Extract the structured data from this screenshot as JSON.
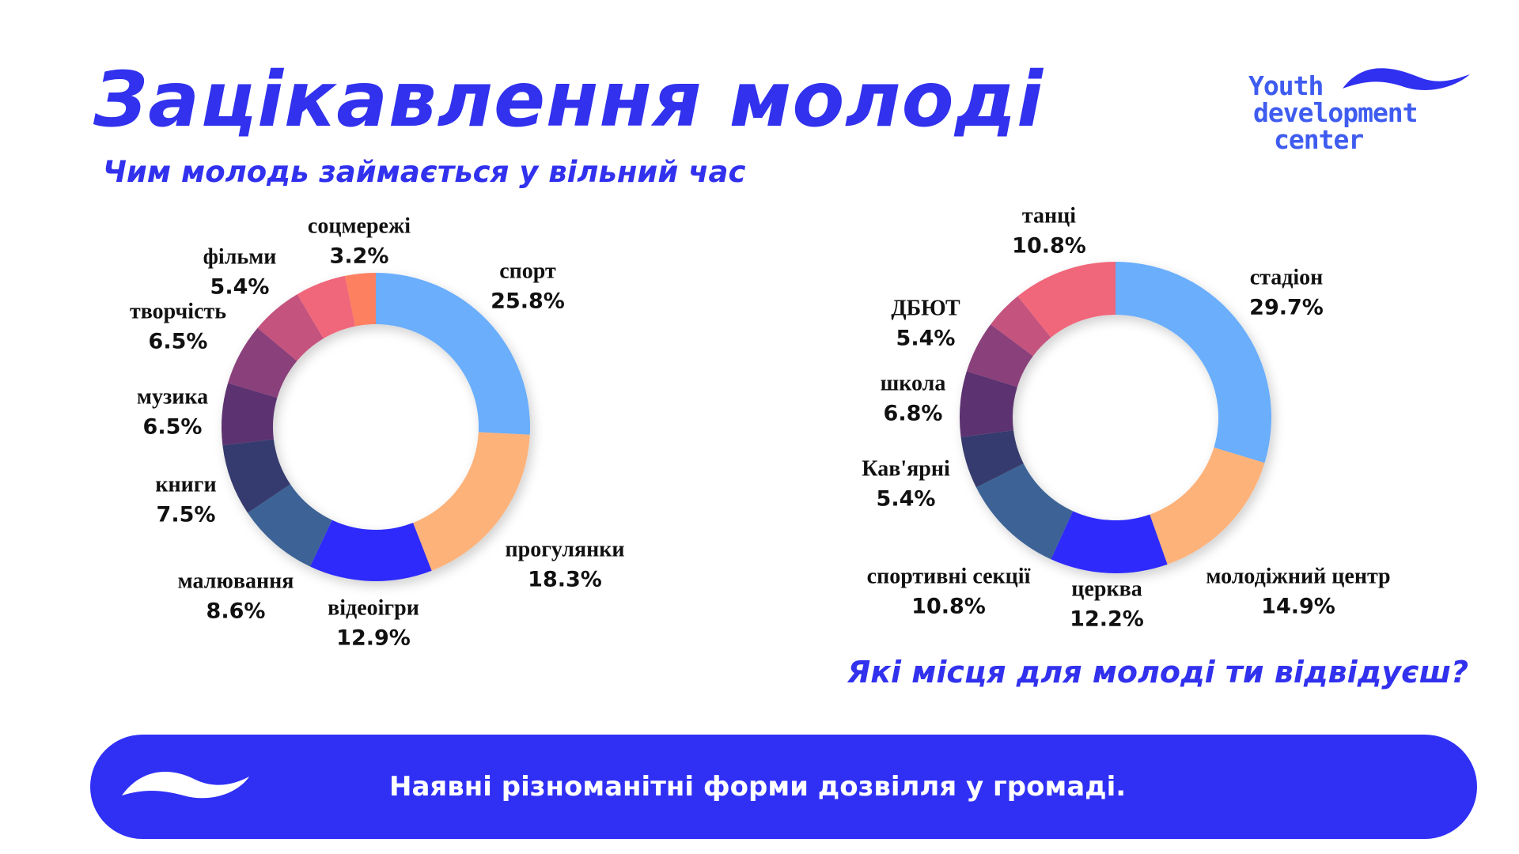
{
  "header": {
    "title": "Зацікавлення молоді",
    "subtitle": "Чим молодь займається у вільний час",
    "question": "Які місця для молоді ти відвідуєш?",
    "logo_text": [
      "Youth",
      "development",
      "center"
    ]
  },
  "banner": {
    "text": "Наявні різноманітні форми дозвілля у громаді."
  },
  "colors": {
    "accent": "#3131ee",
    "banner": "#3030f5"
  },
  "chart_data": [
    {
      "type": "pie",
      "title": "Чим молодь займається у вільний час",
      "slices": [
        {
          "label": "спорт",
          "value": 25.8,
          "display": "25.8%",
          "color": "#6aaefc"
        },
        {
          "label": "прогулянки",
          "value": 18.3,
          "display": "18.3%",
          "color": "#fdb27a"
        },
        {
          "label": "відеоігри",
          "value": 12.9,
          "display": "12.9%",
          "color": "#2f2cfb"
        },
        {
          "label": "малювання",
          "value": 8.6,
          "display": "8.6%",
          "color": "#3c6496"
        },
        {
          "label": "книги",
          "value": 7.5,
          "display": "7.5%",
          "color": "#353a6e"
        },
        {
          "label": "музика",
          "value": 6.5,
          "display": "6.5%",
          "color": "#5b3370"
        },
        {
          "label": "творчість",
          "value": 6.5,
          "display": "6.5%",
          "color": "#8a3f7a"
        },
        {
          "label": "фільми",
          "value": 5.4,
          "display": "5.4%",
          "color": "#c4527e"
        },
        {
          "label": "",
          "value": 5.3,
          "display": "",
          "color": "#f0667a"
        },
        {
          "label": "соцмережі",
          "value": 3.2,
          "display": "3.2%",
          "color": "#fd8060"
        }
      ]
    },
    {
      "type": "pie",
      "title": "Які місця для молоді ти відвідуєш?",
      "slices": [
        {
          "label": "стадіон",
          "value": 29.7,
          "display": "29.7%",
          "color": "#6aaefc"
        },
        {
          "label": "молодіжний центр",
          "value": 14.9,
          "display": "14.9%",
          "color": "#fdb27a"
        },
        {
          "label": "церква",
          "value": 12.2,
          "display": "12.2%",
          "color": "#2f2cfb"
        },
        {
          "label": "спортивні секції",
          "value": 10.8,
          "display": "10.8%",
          "color": "#3c6496"
        },
        {
          "label": "Кав'ярні",
          "value": 5.4,
          "display": "5.4%",
          "color": "#353a6e"
        },
        {
          "label": "школа",
          "value": 6.8,
          "display": "6.8%",
          "color": "#5b3370"
        },
        {
          "label": "ДБЮТ",
          "value": 5.4,
          "display": "5.4%",
          "color": "#8a3f7a"
        },
        {
          "label": "",
          "value": 4.0,
          "display": "",
          "color": "#c4527e"
        },
        {
          "label": "танці",
          "value": 10.8,
          "display": "10.8%",
          "color": "#f0667a"
        }
      ]
    }
  ]
}
